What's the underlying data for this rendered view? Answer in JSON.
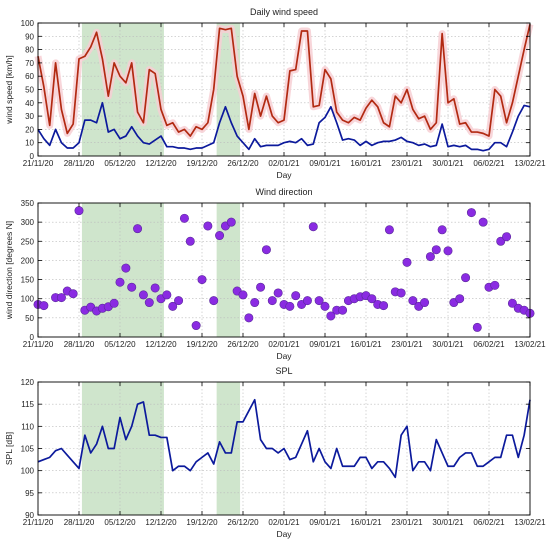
{
  "colors": {
    "highlight": "#cfe5cc",
    "gust_line": "#b22a12",
    "gust_shadow": "#f7cfd4",
    "mean_line": "#0c1a9c",
    "direction_fill": "#8a2be2",
    "direction_stroke": "#5a2a9a",
    "spl_line": "#0c1a9c",
    "grid": "#bbbbbb"
  },
  "x_tick_labels": [
    "21/11/20",
    "28/11/20",
    "05/12/20",
    "12/12/20",
    "19/12/20",
    "26/12/20",
    "02/01/21",
    "09/01/21",
    "16/01/21",
    "23/01/21",
    "30/01/21",
    "06/02/21",
    "13/02/21"
  ],
  "highlight_periods": [
    [
      7.5,
      21.5
    ],
    [
      30.5,
      34.5
    ]
  ],
  "chart_data": [
    {
      "type": "line",
      "title": "Daily wind speed",
      "xlabel": "Day",
      "ylabel": "wind speed [km/h]",
      "xlim": [
        0,
        84
      ],
      "ylim": [
        0,
        100
      ],
      "yticks": [
        0,
        10,
        20,
        30,
        40,
        50,
        60,
        70,
        80,
        90,
        100
      ],
      "grid": true,
      "series": [
        {
          "x": [
            0,
            1,
            2,
            3,
            4,
            5,
            6,
            7,
            8,
            9,
            10,
            11,
            12,
            13,
            14,
            15,
            16,
            17,
            18,
            19,
            20,
            21,
            22,
            23,
            24,
            25,
            26,
            27,
            28,
            29,
            30,
            31,
            32,
            33,
            34,
            35,
            36,
            37,
            38,
            39,
            40,
            41,
            42,
            43,
            44,
            45,
            46,
            47,
            48,
            49,
            50,
            51,
            52,
            53,
            54,
            55,
            56,
            57,
            58,
            59,
            60,
            61,
            62,
            63,
            64,
            65,
            66,
            67,
            68,
            69,
            70,
            71,
            72,
            73,
            74,
            75,
            76,
            77,
            78,
            79,
            80,
            81,
            82,
            83,
            84
          ],
          "values": [
            75,
            52,
            23,
            70,
            35,
            17,
            24,
            73,
            75,
            82,
            93,
            73,
            45,
            70,
            60,
            55,
            70,
            33,
            25,
            65,
            62,
            35,
            23,
            25,
            18,
            20,
            15,
            22,
            20,
            25,
            50,
            96,
            95,
            96,
            60,
            45,
            20,
            47,
            30,
            45,
            30,
            25,
            27,
            64,
            65,
            94,
            94,
            37,
            38,
            65,
            58,
            33,
            27,
            25,
            29,
            27,
            36,
            42,
            37,
            25,
            22,
            45,
            40,
            50,
            35,
            28,
            30,
            20,
            25,
            92,
            40,
            43,
            24,
            25,
            18,
            18,
            17,
            15,
            50,
            45,
            25,
            40,
            60,
            80,
            99
          ]
        },
        {
          "x": [
            0,
            1,
            2,
            3,
            4,
            5,
            6,
            7,
            8,
            9,
            10,
            11,
            12,
            13,
            14,
            15,
            16,
            17,
            18,
            19,
            20,
            21,
            22,
            23,
            24,
            25,
            26,
            27,
            28,
            29,
            30,
            31,
            32,
            33,
            34,
            35,
            36,
            37,
            38,
            39,
            40,
            41,
            42,
            43,
            44,
            45,
            46,
            47,
            48,
            49,
            50,
            51,
            52,
            53,
            54,
            55,
            56,
            57,
            58,
            59,
            60,
            61,
            62,
            63,
            64,
            65,
            66,
            67,
            68,
            69,
            70,
            71,
            72,
            73,
            74,
            75,
            76,
            77,
            78,
            79,
            80,
            81,
            82,
            83,
            84
          ],
          "values": [
            20,
            13,
            8,
            20,
            10,
            6,
            6,
            10,
            27,
            27,
            25,
            40,
            18,
            20,
            13,
            15,
            22,
            15,
            10,
            9,
            12,
            15,
            7,
            7,
            6,
            6,
            5,
            6,
            6,
            8,
            10,
            25,
            37,
            25,
            15,
            10,
            5,
            13,
            7,
            8,
            8,
            8,
            10,
            11,
            10,
            13,
            8,
            9,
            25,
            29,
            37,
            25,
            12,
            13,
            12,
            8,
            11,
            8,
            10,
            11,
            11,
            12,
            14,
            11,
            10,
            8,
            9,
            7,
            8,
            24,
            7,
            8,
            7,
            8,
            5,
            5,
            4,
            5,
            10,
            10,
            7,
            18,
            30,
            38,
            37
          ]
        }
      ]
    },
    {
      "type": "scatter",
      "title": "Wind direction",
      "xlabel": "Day",
      "ylabel": "wind direction [degrees N]",
      "xlim": [
        0,
        84
      ],
      "ylim": [
        0,
        350
      ],
      "yticks": [
        0,
        50,
        100,
        150,
        200,
        250,
        300,
        350
      ],
      "grid": true,
      "series": [
        {
          "x": [
            0,
            1,
            3,
            4,
            5,
            6,
            7,
            8,
            9,
            10,
            11,
            12,
            13,
            14,
            15,
            16,
            17,
            18,
            19,
            20,
            21,
            22,
            23,
            24,
            25,
            26,
            27,
            28,
            29,
            30,
            31,
            32,
            33,
            34,
            35,
            36,
            37,
            38,
            39,
            40,
            41,
            42,
            43,
            44,
            45,
            46,
            47,
            48,
            49,
            50,
            51,
            52,
            53,
            54,
            55,
            56,
            57,
            58,
            59,
            60,
            61,
            62,
            63,
            64,
            65,
            66,
            67,
            68,
            69,
            70,
            71,
            72,
            73,
            74,
            75,
            76,
            77,
            78,
            79,
            80,
            81,
            82,
            83,
            84
          ],
          "values": [
            85,
            82,
            103,
            103,
            120,
            113,
            330,
            70,
            78,
            68,
            75,
            79,
            88,
            143,
            180,
            130,
            283,
            110,
            90,
            128,
            100,
            110,
            80,
            95,
            310,
            250,
            30,
            150,
            290,
            95,
            265,
            290,
            300,
            120,
            110,
            50,
            90,
            130,
            228,
            95,
            115,
            85,
            80,
            108,
            85,
            95,
            288,
            95,
            80,
            55,
            70,
            70,
            95,
            100,
            105,
            108,
            100,
            85,
            82,
            280,
            118,
            115,
            195,
            95,
            80,
            90,
            210,
            228,
            280,
            225,
            90,
            100,
            155,
            325,
            25,
            300,
            130,
            135,
            250,
            262,
            88,
            75,
            70,
            62
          ]
        }
      ]
    },
    {
      "type": "line",
      "title": "SPL",
      "xlabel": "Day",
      "ylabel": "SPL [dB]",
      "xlim": [
        0,
        84
      ],
      "ylim": [
        90,
        120
      ],
      "yticks": [
        90,
        95,
        100,
        105,
        110,
        115,
        120
      ],
      "grid": true,
      "series": [
        {
          "x": [
            0,
            1,
            2,
            3,
            4,
            5,
            6,
            7,
            8,
            9,
            10,
            11,
            12,
            13,
            14,
            15,
            16,
            17,
            18,
            19,
            20,
            21,
            22,
            23,
            24,
            25,
            26,
            27,
            28,
            29,
            30,
            31,
            32,
            33,
            34,
            35,
            36,
            37,
            38,
            39,
            40,
            41,
            42,
            43,
            44,
            45,
            46,
            47,
            48,
            49,
            50,
            51,
            52,
            53,
            54,
            55,
            56,
            57,
            58,
            59,
            60,
            61,
            62,
            63,
            64,
            65,
            66,
            67,
            68,
            69,
            70,
            71,
            72,
            73,
            74,
            75,
            76,
            77,
            78,
            79,
            80,
            81,
            82,
            83,
            84
          ],
          "values": [
            102,
            102.5,
            103,
            104.5,
            105,
            103.5,
            102,
            100.5,
            108,
            104,
            106,
            110,
            105,
            105,
            112,
            107,
            110,
            115,
            115.5,
            108,
            108,
            107.5,
            107.5,
            100,
            101,
            101,
            100,
            102,
            103,
            104,
            101.5,
            106.5,
            104,
            104,
            111,
            111,
            113.5,
            116,
            107,
            105,
            105,
            104,
            105,
            102.5,
            103,
            106,
            109,
            102,
            105,
            102,
            100.5,
            105,
            101,
            101,
            101,
            103,
            103,
            100.5,
            102,
            102,
            100.5,
            98.5,
            108,
            110,
            100,
            102,
            102,
            100,
            107,
            104,
            101,
            101,
            103,
            104,
            104,
            101,
            101,
            102,
            103,
            103,
            108,
            108,
            103,
            108,
            116
          ]
        }
      ]
    }
  ]
}
